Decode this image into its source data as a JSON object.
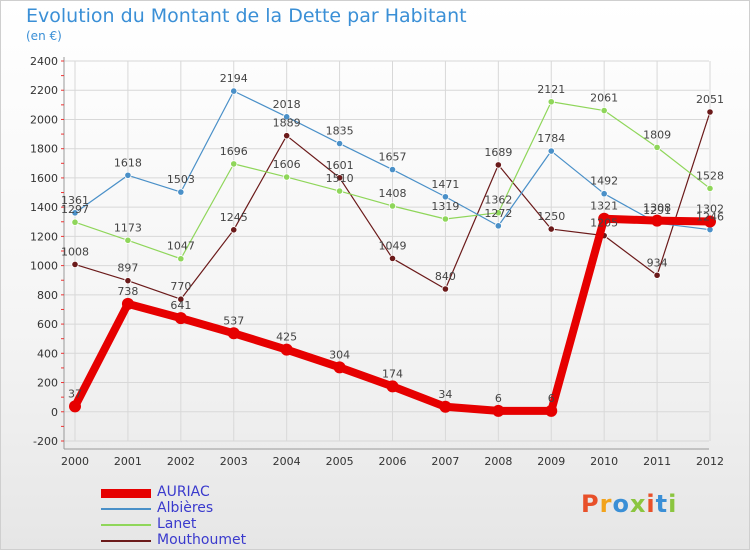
{
  "header": {
    "title": "Evolution du Montant de la Dette par Habitant",
    "subtitle": "(en €)"
  },
  "logo": {
    "text": "Proxiti",
    "colors": [
      "#e8502a",
      "#f2a31b",
      "#3a8fd6",
      "#8bc53f",
      "#e8502a",
      "#3a8fd6",
      "#8bc53f"
    ]
  },
  "chart_data": {
    "type": "line",
    "x": [
      "2000",
      "2001",
      "2002",
      "2003",
      "2004",
      "2005",
      "2006",
      "2007",
      "2008",
      "2009",
      "2010",
      "2011",
      "2012"
    ],
    "ylim": [
      -200,
      2400
    ],
    "yticks": [
      -200,
      0,
      200,
      400,
      600,
      800,
      1000,
      1200,
      1400,
      1600,
      1800,
      2000,
      2200,
      2400
    ],
    "grid": true,
    "legend_position": "bottom-left",
    "series": [
      {
        "name": "Mouthoumet",
        "color": "#6b1a1a",
        "width": 1.2,
        "values": [
          1008,
          897,
          770,
          1245,
          1889,
          1601,
          1049,
          840,
          1689,
          1250,
          1205,
          934,
          2051
        ]
      },
      {
        "name": "Lanet",
        "color": "#8fd65a",
        "width": 1.2,
        "values": [
          1297,
          1173,
          1047,
          1696,
          1606,
          1510,
          1408,
          1319,
          1362,
          2121,
          2061,
          1809,
          1528
        ]
      },
      {
        "name": "Albières",
        "color": "#4a90c8",
        "width": 1.2,
        "values": [
          1361,
          1618,
          1503,
          2194,
          2018,
          1835,
          1657,
          1471,
          1272,
          1784,
          1492,
          1291,
          1246
        ]
      },
      {
        "name": "AURIAC",
        "color": "#e60000",
        "width": 8,
        "values": [
          37,
          738,
          641,
          537,
          425,
          304,
          174,
          34,
          6,
          6,
          1321,
          1308,
          1302
        ]
      }
    ],
    "legend_order": [
      "AURIAC",
      "Albières",
      "Lanet",
      "Mouthoumet"
    ]
  }
}
